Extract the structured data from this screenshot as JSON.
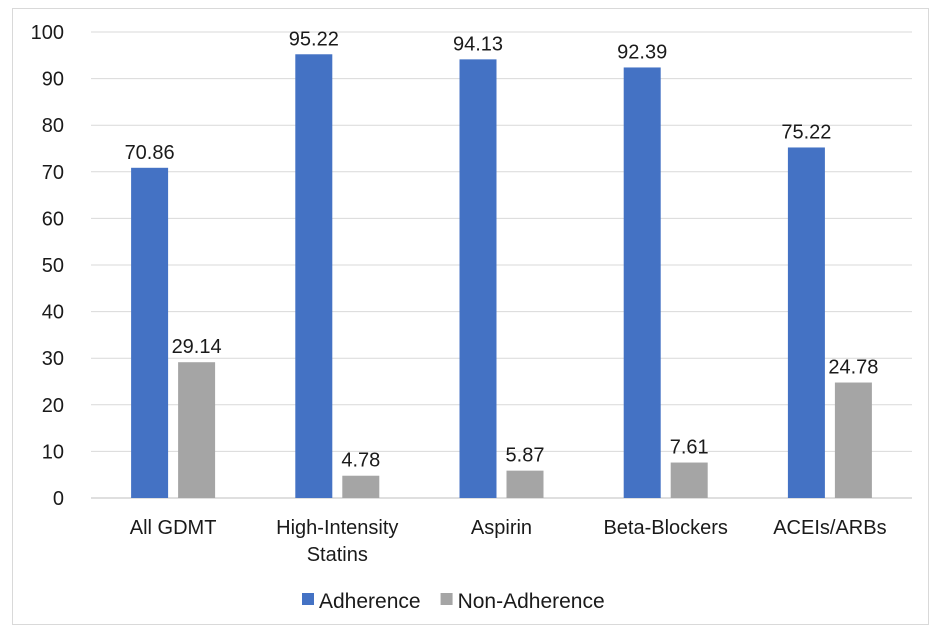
{
  "chart_data": {
    "type": "bar",
    "title": "",
    "xlabel": "",
    "ylabel": "",
    "ylim": [
      0,
      100
    ],
    "yticks": [
      0,
      10,
      20,
      30,
      40,
      50,
      60,
      70,
      80,
      90,
      100
    ],
    "grid": true,
    "legend_position": "bottom",
    "categories": [
      [
        "All GDMT"
      ],
      [
        "High-Intensity",
        "Statins"
      ],
      [
        "Aspirin"
      ],
      [
        "Beta-Blockers"
      ],
      [
        "ACEIs/ARBs"
      ]
    ],
    "series": [
      {
        "name": "Adherence",
        "color": "#4472c4",
        "values": [
          70.86,
          95.22,
          94.13,
          92.39,
          75.22
        ],
        "labels": [
          "70.86",
          "95.22",
          "94.13",
          "92.39",
          "75.22"
        ]
      },
      {
        "name": "Non-Adherence",
        "color": "#a5a5a5",
        "values": [
          29.14,
          4.78,
          5.87,
          7.61,
          24.78
        ],
        "labels": [
          "29.14",
          "4.78",
          "5.87",
          "7.61",
          "24.78"
        ]
      }
    ]
  }
}
